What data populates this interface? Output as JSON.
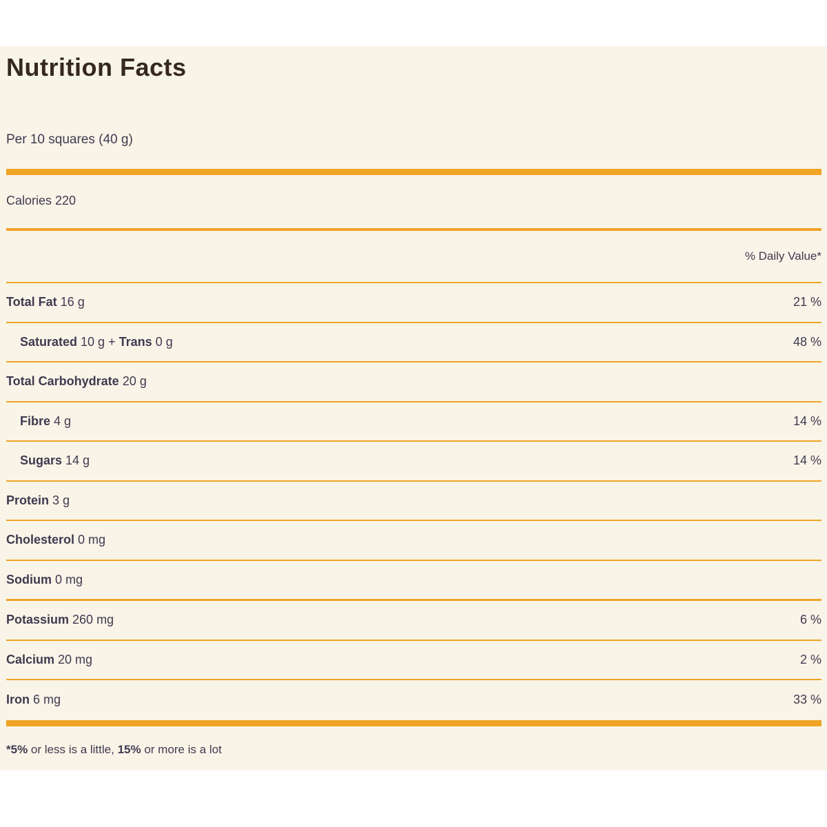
{
  "panel": {
    "title": "Nutrition Facts",
    "serving": "Per 10 squares (40 g)",
    "calories": "Calories 220",
    "daily_value_header": "% Daily Value*",
    "colors": {
      "accent_gold": "#efa426",
      "panel_background": "#f9f4e8",
      "body_text": "#3f3a4f",
      "title_text": "#35281f"
    },
    "rows": [
      {
        "name": "Total Fat",
        "amount": " 16 g",
        "dv": "21 %"
      },
      {
        "name": "Saturated",
        "amount": " 10 g + ",
        "name2": "Trans",
        "amount2": " 0 g",
        "dv": "48 %"
      },
      {
        "name": "Total Carbohydrate",
        "amount": " 20 g",
        "dv": ""
      },
      {
        "name": "Fibre",
        "amount": " 4 g",
        "dv": "14 %"
      },
      {
        "name": "Sugars",
        "amount": " 14 g",
        "dv": "14 %"
      },
      {
        "name": "Protein",
        "amount": " 3 g",
        "dv": ""
      },
      {
        "name": "Cholesterol",
        "amount": " 0 mg",
        "dv": ""
      },
      {
        "name": "Sodium",
        "amount": " 0 mg",
        "dv": ""
      },
      {
        "name": "Potassium",
        "amount": " 260 mg",
        "dv": "6 %"
      },
      {
        "name": "Calcium",
        "amount": " 20 mg",
        "dv": "2 %"
      },
      {
        "name": "Iron",
        "amount": " 6 mg",
        "dv": "33 %"
      }
    ],
    "footnote": {
      "bold1": "*5%",
      "text1": " or less is a little, ",
      "bold2": "15%",
      "text2": " or more is a lot"
    }
  }
}
